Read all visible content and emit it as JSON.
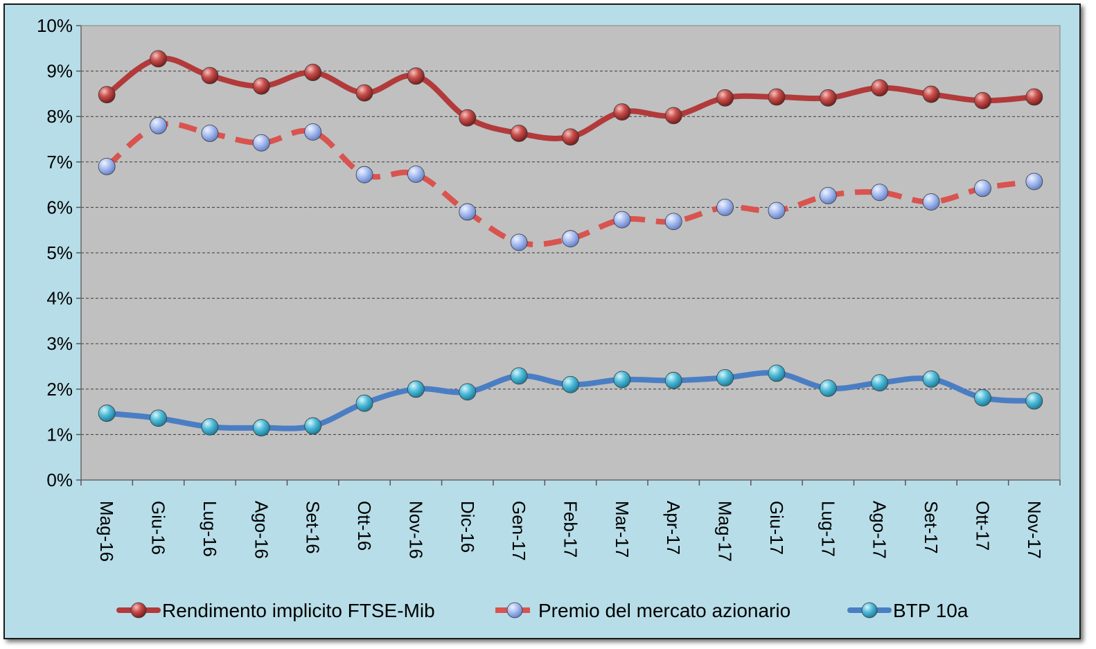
{
  "chart_data": {
    "type": "line",
    "title": "",
    "xlabel": "",
    "ylabel": "",
    "ylim": [
      0,
      10
    ],
    "y_unit": "%",
    "y_ticks": [
      "0%",
      "1%",
      "2%",
      "3%",
      "4%",
      "5%",
      "6%",
      "7%",
      "8%",
      "9%",
      "10%"
    ],
    "grid": "horizontal-dashed",
    "legend_position": "bottom",
    "categories": [
      "Mag-16",
      "Giu-16",
      "Lug-16",
      "Ago-16",
      "Set-16",
      "Ott-16",
      "Nov-16",
      "Dic-16",
      "Gen-17",
      "Feb-17",
      "Mar-17",
      "Apr-17",
      "Mag-17",
      "Giu-17",
      "Lug-17",
      "Ago-17",
      "Set-17",
      "Ott-17",
      "Nov-17"
    ],
    "series": [
      {
        "name": "Rendimento implicito FTSE-Mib",
        "style": "solid",
        "line_color": "#b23a3a",
        "marker_color": "#c0504d",
        "values": [
          8.48,
          9.27,
          8.9,
          8.67,
          8.97,
          8.52,
          8.89,
          7.97,
          7.63,
          7.55,
          8.1,
          8.02,
          8.41,
          8.43,
          8.41,
          8.63,
          8.49,
          8.35,
          8.43
        ]
      },
      {
        "name": "Premio del mercato azionario",
        "style": "dashed",
        "line_color": "#d9534f",
        "marker_color": "#9bb3e6",
        "values": [
          6.9,
          7.8,
          7.63,
          7.42,
          7.66,
          6.72,
          6.73,
          5.9,
          5.23,
          5.31,
          5.73,
          5.69,
          6.0,
          5.93,
          6.26,
          6.33,
          6.12,
          6.42,
          6.57
        ]
      },
      {
        "name": "BTP 10a",
        "style": "solid",
        "line_color": "#4a7ec4",
        "marker_color": "#4bb8d6",
        "values": [
          1.47,
          1.36,
          1.17,
          1.15,
          1.19,
          1.69,
          2.0,
          1.94,
          2.29,
          2.1,
          2.21,
          2.19,
          2.25,
          2.35,
          2.02,
          2.14,
          2.22,
          1.81,
          1.74
        ]
      }
    ]
  }
}
